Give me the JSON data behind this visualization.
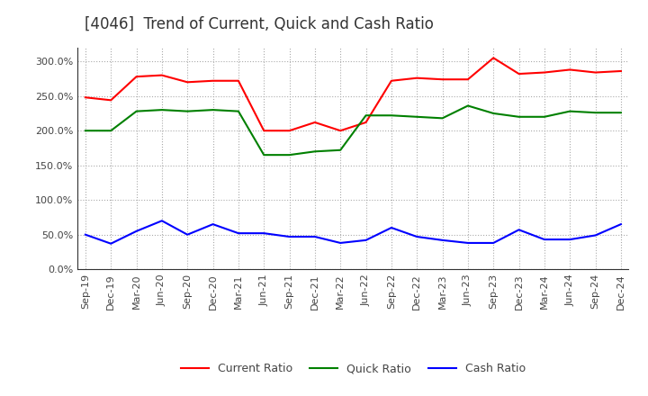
{
  "title": "[4046]  Trend of Current, Quick and Cash Ratio",
  "x_labels": [
    "Sep-19",
    "Dec-19",
    "Mar-20",
    "Jun-20",
    "Sep-20",
    "Dec-20",
    "Mar-21",
    "Jun-21",
    "Sep-21",
    "Dec-21",
    "Mar-22",
    "Jun-22",
    "Sep-22",
    "Dec-22",
    "Mar-23",
    "Jun-23",
    "Sep-23",
    "Dec-23",
    "Mar-24",
    "Jun-24",
    "Sep-24",
    "Dec-24"
  ],
  "current_ratio": [
    248,
    244,
    278,
    280,
    270,
    272,
    272,
    200,
    200,
    212,
    200,
    212,
    272,
    276,
    274,
    274,
    305,
    282,
    284,
    288,
    284,
    286
  ],
  "quick_ratio": [
    200,
    200,
    228,
    230,
    228,
    230,
    228,
    165,
    165,
    170,
    172,
    222,
    222,
    220,
    218,
    236,
    225,
    220,
    220,
    228,
    226,
    226
  ],
  "cash_ratio": [
    50,
    37,
    55,
    70,
    50,
    65,
    52,
    52,
    47,
    47,
    38,
    42,
    60,
    47,
    42,
    38,
    38,
    57,
    43,
    43,
    49,
    65
  ],
  "colors": {
    "current": "#ff0000",
    "quick": "#008000",
    "cash": "#0000ff"
  },
  "ylim": [
    0,
    320
  ],
  "yticks": [
    0,
    50,
    100,
    150,
    200,
    250,
    300
  ],
  "background_color": "#ffffff",
  "plot_bg_color": "#ffffff",
  "grid_color": "#aaaaaa",
  "title_fontsize": 12,
  "tick_fontsize": 8,
  "legend_fontsize": 9
}
